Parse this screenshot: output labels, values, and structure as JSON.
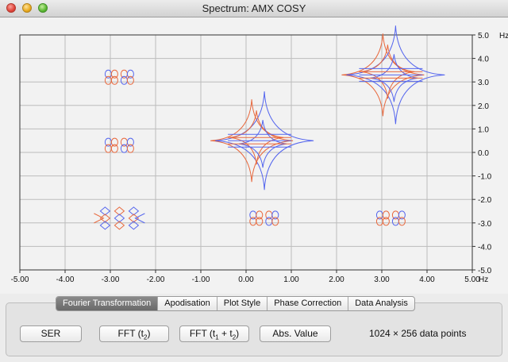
{
  "window": {
    "title": "Spectrum: AMX COSY",
    "controls": [
      "close",
      "minimize",
      "zoom"
    ],
    "colors": {
      "close": "#e0443a",
      "minimize": "#e9a91c",
      "zoom": "#5bb832"
    }
  },
  "tabs": [
    {
      "label": "Fourier Transformation",
      "active": true
    },
    {
      "label": "Apodisation",
      "active": false
    },
    {
      "label": "Plot Style",
      "active": false
    },
    {
      "label": "Phase Correction",
      "active": false
    },
    {
      "label": "Data Analysis",
      "active": false
    }
  ],
  "buttons": {
    "ser": "SER",
    "fft_t2": {
      "label": "FFT (t",
      "sub": "2",
      "close": ")"
    },
    "fft_t1t2": {
      "label": "FFT (t",
      "sub1": "1",
      "mid": " + t",
      "sub2": "2",
      "close": ")"
    },
    "abs_value": "Abs. Value"
  },
  "data_info": "1024 × 256 data points",
  "chart_data": {
    "type": "contour",
    "title": "",
    "xlabel": "",
    "ylabel": "",
    "x_unit": "Hz",
    "y_unit": "Hz",
    "xlim": [
      -5.0,
      5.0
    ],
    "ylim": [
      -5.0,
      5.0
    ],
    "x_ticks": [
      "-5.00",
      "-4.00",
      "-3.00",
      "-2.00",
      "-1.00",
      "0.00",
      "1.00",
      "2.00",
      "3.00",
      "4.00",
      "5.00"
    ],
    "y_ticks": [
      "5.0",
      "4.0",
      "3.0",
      "2.0",
      "1.0",
      "0.0",
      "-1.0",
      "-2.0",
      "-3.0",
      "-4.0",
      "-5.0"
    ],
    "grid": true,
    "series_colors": {
      "positive": "#e8693e",
      "negative": "#5566ee"
    },
    "peaks": [
      {
        "x": 3.2,
        "y": 3.3,
        "kind": "diagonal"
      },
      {
        "x": 0.3,
        "y": 0.5,
        "kind": "diagonal"
      },
      {
        "x": -2.8,
        "y": -2.8,
        "kind": "diagonal"
      },
      {
        "x": -2.8,
        "y": 3.2,
        "kind": "cross"
      },
      {
        "x": -2.8,
        "y": 0.3,
        "kind": "cross"
      },
      {
        "x": 0.4,
        "y": -2.8,
        "kind": "cross"
      },
      {
        "x": 3.2,
        "y": -2.8,
        "kind": "cross"
      }
    ]
  }
}
